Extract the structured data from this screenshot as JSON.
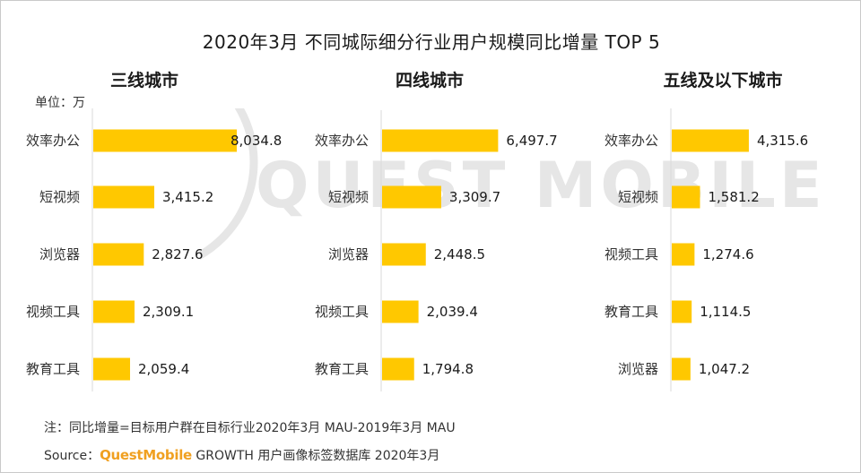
{
  "title": "2020年3月 不同城际细分行业用户规模同比增量 TOP 5",
  "unit_label": "单位：万",
  "watermark": "QUEST MOBILE",
  "footnote": "注：同比增量=目标用户群在目标行业2020年3月 MAU-2019年3月 MAU",
  "source": {
    "prefix": "Source：",
    "brand": "QuestMobile",
    "text": "GROWTH 用户画像标签数据库 2020年3月"
  },
  "colors": {
    "bar": "#FFC800",
    "axis": "#d9d9d9",
    "brand": "#f0a020",
    "watermark": "#e5e5e5"
  },
  "chart_data": [
    {
      "type": "bar",
      "orientation": "horizontal",
      "title": "三线城市",
      "categories": [
        "效率办公",
        "短视频",
        "浏览器",
        "视频工具",
        "教育工具"
      ],
      "values": [
        8034.8,
        3415.2,
        2827.6,
        2309.1,
        2059.4
      ],
      "value_labels": [
        "8,034.8",
        "3,415.2",
        "2,827.6",
        "2,309.1",
        "2,059.4"
      ]
    },
    {
      "type": "bar",
      "orientation": "horizontal",
      "title": "四线城市",
      "categories": [
        "效率办公",
        "短视频",
        "浏览器",
        "视频工具",
        "教育工具"
      ],
      "values": [
        6497.7,
        3309.7,
        2448.5,
        2039.4,
        1794.8
      ],
      "value_labels": [
        "6,497.7",
        "3,309.7",
        "2,448.5",
        "2,039.4",
        "1,794.8"
      ]
    },
    {
      "type": "bar",
      "orientation": "horizontal",
      "title": "五线及以下城市",
      "categories": [
        "效率办公",
        "短视频",
        "视频工具",
        "教育工具",
        "浏览器"
      ],
      "values": [
        4315.6,
        1581.2,
        1274.6,
        1114.5,
        1047.2
      ],
      "value_labels": [
        "4,315.6",
        "1,581.2",
        "1,274.6",
        "1,114.5",
        "1,047.2"
      ]
    }
  ]
}
